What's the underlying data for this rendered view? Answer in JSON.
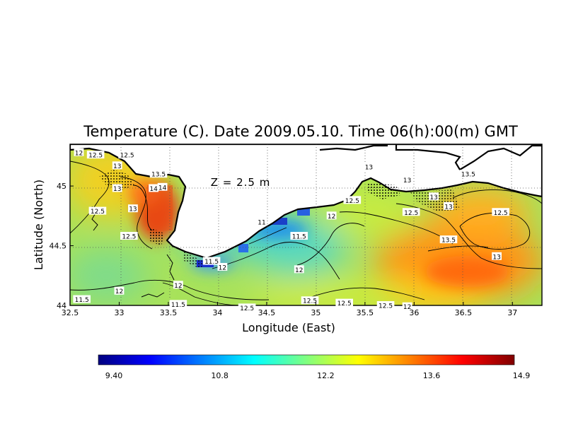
{
  "title": "Temperature (C). Date 2009.05.10. Time 06(h):00(m) GMT",
  "xlabel": "Longitude (East)",
  "ylabel": "Latitude (North)",
  "depth_label": "Z = 2.5 m",
  "map": {
    "type": "contour-map",
    "xlim": [
      32.5,
      37.3
    ],
    "ylim": [
      44.0,
      45.35
    ],
    "x_ticks": [
      "32.5",
      "33",
      "33.5",
      "34",
      "34.5",
      "35",
      "35.5",
      "36",
      "36.5",
      "37"
    ],
    "y_ticks": [
      "44",
      "44.5",
      "45"
    ],
    "grid": "dotted",
    "contour_labels": [
      {
        "text": "12",
        "lon": 32.59,
        "lat": 45.28
      },
      {
        "text": "12.5",
        "lon": 32.76,
        "lat": 45.26
      },
      {
        "text": "12.5",
        "lon": 33.08,
        "lat": 45.26
      },
      {
        "text": "13",
        "lon": 32.98,
        "lat": 45.17
      },
      {
        "text": "13.5",
        "lon": 33.4,
        "lat": 45.1
      },
      {
        "text": "13",
        "lon": 32.98,
        "lat": 44.98
      },
      {
        "text": "14",
        "lon": 33.35,
        "lat": 44.98
      },
      {
        "text": "14",
        "lon": 33.44,
        "lat": 44.99
      },
      {
        "text": "12.5",
        "lon": 32.78,
        "lat": 44.79
      },
      {
        "text": "13",
        "lon": 33.14,
        "lat": 44.81
      },
      {
        "text": "12.5",
        "lon": 33.1,
        "lat": 44.58
      },
      {
        "text": "11.5",
        "lon": 33.94,
        "lat": 44.37
      },
      {
        "text": "12",
        "lon": 34.05,
        "lat": 44.32
      },
      {
        "text": "11",
        "lon": 34.45,
        "lat": 44.7
      },
      {
        "text": "11.5",
        "lon": 34.83,
        "lat": 44.58
      },
      {
        "text": "12",
        "lon": 34.83,
        "lat": 44.3
      },
      {
        "text": "12",
        "lon": 33.0,
        "lat": 44.12
      },
      {
        "text": "12",
        "lon": 33.6,
        "lat": 44.17
      },
      {
        "text": "11.5",
        "lon": 32.62,
        "lat": 44.05
      },
      {
        "text": "11.5",
        "lon": 33.6,
        "lat": 44.01
      },
      {
        "text": "12.5",
        "lon": 34.3,
        "lat": 43.98
      },
      {
        "text": "12.5",
        "lon": 34.94,
        "lat": 44.04
      },
      {
        "text": "12.5",
        "lon": 35.29,
        "lat": 44.02
      },
      {
        "text": "12.5",
        "lon": 35.71,
        "lat": 44.0
      },
      {
        "text": "12",
        "lon": 35.93,
        "lat": 43.99
      },
      {
        "text": "12",
        "lon": 35.16,
        "lat": 44.75
      },
      {
        "text": "12.5",
        "lon": 35.37,
        "lat": 44.88
      },
      {
        "text": "12.5",
        "lon": 35.97,
        "lat": 44.78
      },
      {
        "text": "13",
        "lon": 35.54,
        "lat": 45.16
      },
      {
        "text": "13",
        "lon": 35.93,
        "lat": 45.05
      },
      {
        "text": "13",
        "lon": 36.2,
        "lat": 44.91
      },
      {
        "text": "13",
        "lon": 36.35,
        "lat": 44.83
      },
      {
        "text": "13.5",
        "lon": 36.55,
        "lat": 45.1
      },
      {
        "text": "12.5",
        "lon": 36.88,
        "lat": 44.78
      },
      {
        "text": "13.5",
        "lon": 36.35,
        "lat": 44.55
      },
      {
        "text": "13",
        "lon": 36.84,
        "lat": 44.41
      }
    ]
  },
  "colorbar": {
    "min": 9.4,
    "max": 14.9,
    "labels": [
      "9.40",
      "10.8",
      "12.2",
      "13.6",
      "14.9"
    ],
    "colors": [
      "#000080",
      "#0000ff",
      "#0080ff",
      "#00ffff",
      "#80ff80",
      "#ffff00",
      "#ff8000",
      "#ff0000",
      "#800000"
    ]
  }
}
